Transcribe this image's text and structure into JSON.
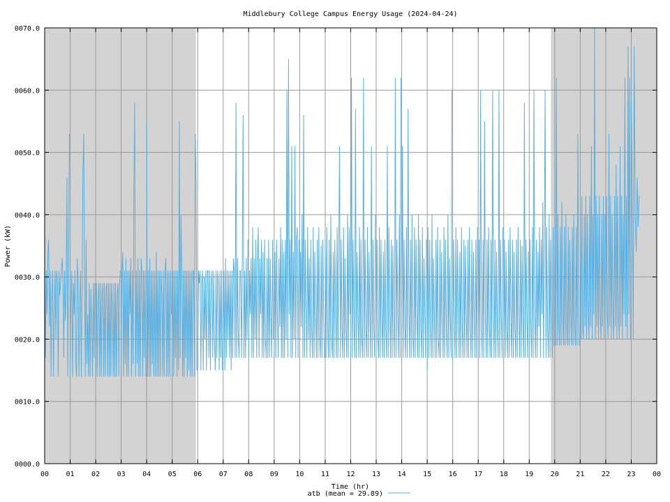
{
  "chart_data": {
    "type": "line",
    "title": "Middlebury College Campus Energy Usage (2024-04-24)",
    "xlabel": "Time (hr)",
    "ylabel": "Power (kW)",
    "xlim": [
      0,
      24
    ],
    "ylim": [
      0,
      70
    ],
    "x_ticks": [
      "00",
      "01",
      "02",
      "03",
      "04",
      "05",
      "06",
      "07",
      "08",
      "09",
      "10",
      "11",
      "12",
      "13",
      "14",
      "15",
      "16",
      "17",
      "18",
      "19",
      "20",
      "21",
      "22",
      "23",
      "00"
    ],
    "y_ticks": [
      "0000.0",
      "0010.0",
      "0020.0",
      "0030.0",
      "0040.0",
      "0050.0",
      "0060.0",
      "0070.0"
    ],
    "grid": true,
    "night_shading": [
      {
        "start": 0,
        "end": 5.93
      },
      {
        "start": 19.85,
        "end": 24
      }
    ],
    "legend": {
      "position": "bottom-center",
      "text": "atb (mean = 29.89)"
    },
    "series": [
      {
        "name": "atb",
        "mean": 29.89,
        "color": "#5aafe0",
        "segments": [
          {
            "start": 0.0,
            "end": 1.0,
            "values": [
              31,
              17,
              31,
              24,
              34,
              36,
              22,
              31,
              14,
              27,
              31,
              14,
              24,
              31,
              20,
              31,
              29,
              14,
              31,
              27,
              29,
              31,
              33,
              29,
              17,
              31,
              23,
              29,
              46,
              14,
              31,
              53
            ]
          },
          {
            "start": 1.0,
            "end": 2.0,
            "values": [
              14,
              26,
              31,
              14,
              29,
              24,
              31,
              16,
              14,
              33,
              29,
              14,
              25,
              31,
              14,
              29,
              47,
              53,
              29,
              14,
              36,
              16,
              24,
              14,
              29,
              14,
              28,
              22,
              14,
              29,
              17,
              29
            ]
          },
          {
            "start": 2.0,
            "end": 3.0,
            "values": [
              14,
              29,
              14,
              26,
              29,
              14,
              29,
              14,
              27,
              29,
              14,
              29,
              14,
              28,
              29,
              14,
              29,
              14,
              29,
              14,
              29,
              25,
              14,
              29,
              14,
              29,
              14,
              27,
              29,
              14,
              29,
              31
            ]
          },
          {
            "start": 3.0,
            "end": 4.0,
            "values": [
              14,
              31,
              34,
              14,
              31,
              16,
              33,
              14,
              31,
              14,
              31,
              24,
              33,
              14,
              31,
              16,
              45,
              58,
              14,
              31,
              16,
              33,
              14,
              31,
              14,
              33,
              31,
              14,
              31,
              17,
              31,
              14
            ]
          },
          {
            "start": 4.0,
            "end": 5.0,
            "values": [
              55,
              14,
              31,
              14,
              33,
              14,
              31,
              16,
              31,
              14,
              31,
              14,
              34,
              14,
              31,
              14,
              31,
              14,
              31,
              27,
              14,
              31,
              14,
              31,
              33,
              14,
              31,
              14,
              31,
              14,
              31,
              24
            ]
          },
          {
            "start": 5.0,
            "end": 6.0,
            "values": [
              14,
              31,
              14,
              31,
              17,
              31,
              14,
              31,
              15,
              55,
              17,
              40,
              31,
              14,
              31,
              14,
              31,
              17,
              31,
              14,
              31,
              15,
              31,
              14,
              31,
              14,
              31,
              31,
              14,
              53,
              45,
              15
            ]
          },
          {
            "start": 6.0,
            "end": 7.0,
            "values": [
              15,
              31,
              29,
              31,
              15,
              29,
              31,
              15,
              30,
              20,
              31,
              15,
              31,
              31,
              17,
              31,
              15,
              29,
              31,
              17,
              31,
              20,
              15,
              31,
              17,
              31,
              29,
              15,
              31,
              17,
              31,
              15
            ]
          },
          {
            "start": 7.0,
            "end": 8.0,
            "values": [
              17,
              31,
              15,
              33,
              17,
              31,
              20,
              31,
              17,
              31,
              15,
              31,
              17,
              33,
              31,
              17,
              58,
              17,
              33,
              20,
              17,
              31,
              31,
              17,
              33,
              56,
              17,
              31,
              17,
              33,
              20,
              36
            ]
          },
          {
            "start": 8.0,
            "end": 9.0,
            "values": [
              17,
              31,
              24,
              33,
              17,
              38,
              17,
              33,
              20,
              36,
              17,
              33,
              38,
              17,
              33,
              24,
              36,
              17,
              34,
              17,
              36,
              20,
              17,
              33,
              17,
              36,
              17,
              33,
              24,
              17,
              36,
              20
            ]
          },
          {
            "start": 9.0,
            "end": 10.0,
            "values": [
              17,
              34,
              17,
              36,
              24,
              17,
              33,
              22,
              38,
              17,
              36,
              17,
              34,
              17,
              36,
              20,
              60,
              17,
              65,
              24,
              36,
              17,
              51,
              17,
              34,
              20,
              51,
              17,
              36,
              38,
              17,
              36
            ]
          },
          {
            "start": 10.0,
            "end": 11.0,
            "values": [
              17,
              34,
              22,
              40,
              17,
              56,
              17,
              36,
              24,
              17,
              38,
              20,
              33,
              17,
              36,
              22,
              17,
              38,
              17,
              34,
              24,
              17,
              36,
              17,
              38,
              20,
              17,
              35,
              17,
              36,
              24,
              17
            ]
          },
          {
            "start": 11.0,
            "end": 12.0,
            "values": [
              36,
              17,
              38,
              22,
              17,
              36,
              17,
              40,
              20,
              17,
              34,
              17,
              36,
              24,
              17,
              38,
              17,
              35,
              51,
              17,
              36,
              22,
              17,
              38,
              17,
              33,
              22,
              17,
              40,
              17,
              38,
              24
            ]
          },
          {
            "start": 12.0,
            "end": 13.0,
            "values": [
              17,
              62,
              17,
              36,
              22,
              17,
              57,
              17,
              34,
              24,
              17,
              38,
              17,
              36,
              20,
              17,
              62,
              17,
              36,
              22,
              17,
              38,
              17,
              34,
              24,
              17,
              51,
              17,
              36,
              22,
              17,
              40
            ]
          },
          {
            "start": 13.0,
            "end": 14.0,
            "values": [
              17,
              36,
              20,
              17,
              38,
              17,
              36,
              24,
              17,
              34,
              17,
              36,
              22,
              17,
              51,
              17,
              38,
              24,
              17,
              36,
              17,
              35,
              22,
              17,
              62,
              17,
              36,
              24,
              17,
              40,
              17,
              62
            ]
          },
          {
            "start": 14.0,
            "end": 15.0,
            "values": [
              17,
              51,
              17,
              36,
              22,
              17,
              38,
              17,
              57,
              24,
              17,
              36,
              17,
              40,
              20,
              17,
              38,
              17,
              36,
              24,
              17,
              40,
              17,
              36,
              22,
              17,
              38,
              17,
              33,
              24,
              17,
              36
            ]
          },
          {
            "start": 15.0,
            "end": 16.0,
            "values": [
              15,
              38,
              17,
              36,
              22,
              17,
              40,
              17,
              33,
              24,
              17,
              36,
              17,
              38,
              20,
              17,
              36,
              17,
              34,
              24,
              17,
              38,
              17,
              36,
              22,
              17,
              40,
              17,
              33,
              24,
              17,
              60
            ]
          },
          {
            "start": 16.0,
            "end": 17.0,
            "values": [
              17,
              36,
              22,
              17,
              38,
              17,
              36,
              24,
              17,
              34,
              17,
              38,
              22,
              17,
              36,
              17,
              35,
              24,
              17,
              36,
              17,
              38,
              22,
              17,
              36,
              17,
              34,
              24,
              17,
              36,
              17,
              38
            ]
          },
          {
            "start": 17.0,
            "end": 18.0,
            "values": [
              17,
              36,
              17,
              60,
              22,
              17,
              36,
              17,
              55,
              24,
              17,
              36,
              17,
              38,
              22,
              17,
              36,
              17,
              60,
              24,
              17,
              36,
              17,
              34,
              22,
              17,
              60,
              17,
              36,
              24,
              17,
              38
            ]
          },
          {
            "start": 18.0,
            "end": 19.0,
            "values": [
              17,
              36,
              17,
              34,
              22,
              17,
              36,
              17,
              38,
              24,
              17,
              36,
              17,
              34,
              22,
              17,
              36,
              17,
              38,
              24,
              17,
              36,
              17,
              35,
              22,
              17,
              58,
              17,
              36,
              24,
              17,
              34
            ]
          },
          {
            "start": 19.0,
            "end": 20.0,
            "values": [
              17,
              36,
              22,
              17,
              38,
              17,
              60,
              24,
              17,
              36,
              17,
              34,
              22,
              38,
              17,
              36,
              24,
              42,
              17,
              36,
              60,
              17,
              38,
              22,
              17,
              40,
              17,
              36,
              24,
              17,
              38,
              19
            ]
          },
          {
            "start": 20.0,
            "end": 21.0,
            "values": [
              38,
              19,
              62,
              19,
              40,
              22,
              19,
              38,
              19,
              42,
              24,
              19,
              38,
              19,
              40,
              22,
              19,
              38,
              19,
              36,
              24,
              19,
              38,
              19,
              40,
              22,
              19,
              38,
              19,
              53,
              24,
              19
            ]
          },
          {
            "start": 21.0,
            "end": 22.0,
            "values": [
              40,
              20,
              43,
              22,
              20,
              40,
              22,
              43,
              20,
              40,
              24,
              20,
              43,
              22,
              51,
              20,
              40,
              24,
              70,
              20,
              43,
              22,
              40,
              20,
              43,
              24,
              20,
              40,
              22,
              43,
              20,
              40
            ]
          },
          {
            "start": 22.0,
            "end": 23.0,
            "values": [
              20,
              43,
              24,
              20,
              53,
              22,
              43,
              20,
              40,
              24,
              20,
              43,
              22,
              48,
              20,
              43,
              24,
              20,
              51,
              22,
              43,
              20,
              40,
              24,
              62,
              22,
              43,
              20,
              67,
              24,
              62,
              20
            ]
          },
          {
            "start": 23.0,
            "end": 23.35,
            "values": [
              58,
              43,
              20,
              67,
              40,
              34,
              46,
              38,
              43
            ]
          }
        ]
      }
    ]
  }
}
